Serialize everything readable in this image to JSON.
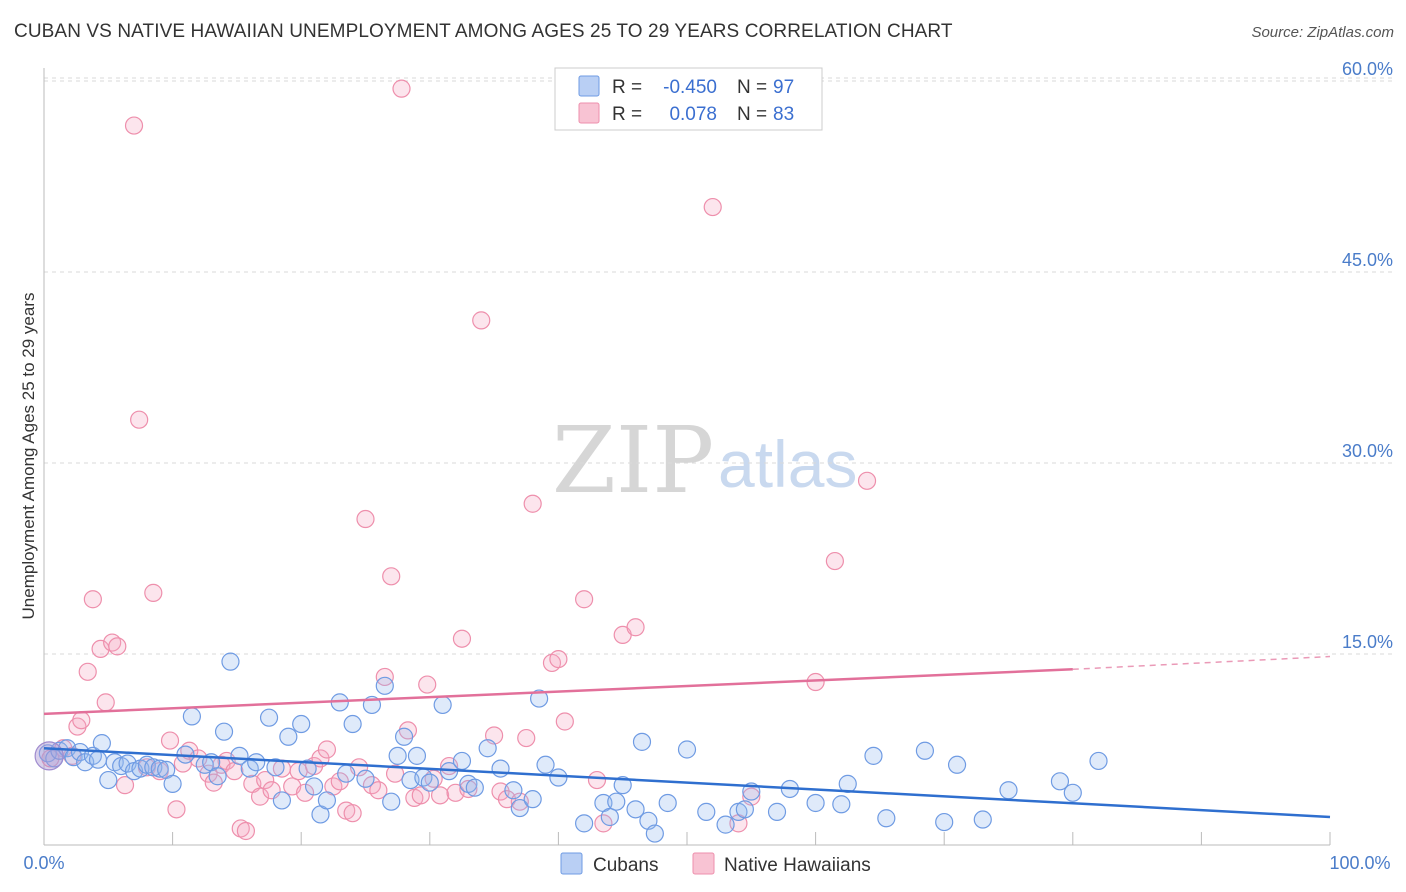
{
  "title": "CUBAN VS NATIVE HAWAIIAN UNEMPLOYMENT AMONG AGES 25 TO 29 YEARS CORRELATION CHART",
  "source": "Source: ZipAtlas.com",
  "watermark": {
    "zip": "ZIP",
    "atlas": "atlas"
  },
  "legend": {
    "r_label": "R =",
    "n_label": "N =",
    "rows": [
      {
        "r": "-0.450",
        "n": "97"
      },
      {
        "r": "0.078",
        "n": "83"
      }
    ]
  },
  "bottom_legend": [
    "Cubans",
    "Native Hawaiians"
  ],
  "chart_data": {
    "type": "scatter",
    "title": "CUBAN VS NATIVE HAWAIIAN UNEMPLOYMENT AMONG AGES 25 TO 29 YEARS CORRELATION CHART",
    "xlabel": "",
    "ylabel": "Unemployment Among Ages 25 to 29 years",
    "xlim": [
      0,
      100
    ],
    "ylim": [
      0,
      62
    ],
    "x_tick_labels": [
      "0.0%",
      "100.0%"
    ],
    "y_ticks": [
      15,
      30,
      45,
      60
    ],
    "y_tick_labels": [
      "15.0%",
      "30.0%",
      "45.0%",
      "60.0%"
    ],
    "grid": true,
    "legend_position": "top-center",
    "colors": {
      "cubans": "#6f9be3",
      "hawaiians": "#ee8fac",
      "cuban_line": "#2f6fcf",
      "hawaiian_line": "#e2709a"
    },
    "series": [
      {
        "name": "Cubans",
        "r": -0.45,
        "n": 97,
        "trend": {
          "x0": 0,
          "y0": 7.6,
          "x1": 100,
          "y1": 2.2
        },
        "points": [
          [
            0.3,
            7.2
          ],
          [
            0.8,
            6.8
          ],
          [
            1.2,
            7.4
          ],
          [
            1.8,
            7.6
          ],
          [
            2.3,
            6.9
          ],
          [
            2.8,
            7.3
          ],
          [
            3.2,
            6.5
          ],
          [
            3.8,
            7.0
          ],
          [
            4.2,
            6.7
          ],
          [
            4.5,
            8.0
          ],
          [
            5.0,
            5.1
          ],
          [
            5.5,
            6.5
          ],
          [
            6.0,
            6.2
          ],
          [
            6.5,
            6.4
          ],
          [
            7.0,
            5.8
          ],
          [
            7.5,
            6.0
          ],
          [
            8.0,
            6.3
          ],
          [
            8.5,
            6.1
          ],
          [
            9.0,
            6.0
          ],
          [
            9.5,
            5.9
          ],
          [
            10.0,
            4.8
          ],
          [
            11.0,
            7.1
          ],
          [
            11.5,
            10.1
          ],
          [
            12.5,
            6.3
          ],
          [
            13.0,
            6.5
          ],
          [
            13.5,
            5.4
          ],
          [
            14.0,
            8.9
          ],
          [
            14.5,
            14.4
          ],
          [
            15.2,
            7.0
          ],
          [
            16.0,
            6.0
          ],
          [
            16.5,
            6.5
          ],
          [
            17.5,
            10.0
          ],
          [
            18.0,
            6.1
          ],
          [
            18.5,
            3.5
          ],
          [
            19.0,
            8.5
          ],
          [
            20.0,
            9.5
          ],
          [
            20.5,
            6.0
          ],
          [
            21.0,
            4.6
          ],
          [
            21.5,
            2.4
          ],
          [
            22.0,
            3.5
          ],
          [
            23.0,
            11.2
          ],
          [
            23.5,
            5.6
          ],
          [
            24.0,
            9.5
          ],
          [
            25.0,
            5.2
          ],
          [
            25.5,
            11.0
          ],
          [
            26.5,
            12.5
          ],
          [
            27.0,
            3.4
          ],
          [
            27.5,
            7.0
          ],
          [
            28.0,
            8.5
          ],
          [
            28.5,
            5.1
          ],
          [
            29.0,
            7.0
          ],
          [
            29.5,
            5.3
          ],
          [
            30.0,
            4.9
          ],
          [
            31.0,
            11.0
          ],
          [
            31.5,
            5.8
          ],
          [
            32.5,
            6.6
          ],
          [
            33.0,
            4.8
          ],
          [
            33.5,
            4.5
          ],
          [
            34.5,
            7.6
          ],
          [
            35.5,
            6.0
          ],
          [
            36.5,
            4.3
          ],
          [
            37.0,
            2.9
          ],
          [
            38.0,
            3.6
          ],
          [
            38.5,
            11.5
          ],
          [
            39.0,
            6.3
          ],
          [
            40.0,
            5.3
          ],
          [
            42.0,
            1.7
          ],
          [
            43.5,
            3.3
          ],
          [
            44.0,
            2.2
          ],
          [
            44.5,
            3.4
          ],
          [
            45.0,
            4.7
          ],
          [
            46.0,
            2.8
          ],
          [
            46.5,
            8.1
          ],
          [
            47.0,
            1.9
          ],
          [
            47.5,
            0.9
          ],
          [
            48.5,
            3.3
          ],
          [
            50.0,
            7.5
          ],
          [
            51.5,
            2.6
          ],
          [
            53.0,
            1.6
          ],
          [
            54.0,
            2.6
          ],
          [
            54.5,
            2.8
          ],
          [
            55.0,
            4.2
          ],
          [
            57.0,
            2.6
          ],
          [
            58.0,
            4.4
          ],
          [
            60.0,
            3.3
          ],
          [
            62.0,
            3.2
          ],
          [
            62.5,
            4.8
          ],
          [
            64.5,
            7.0
          ],
          [
            65.5,
            2.1
          ],
          [
            68.5,
            7.4
          ],
          [
            70.0,
            1.8
          ],
          [
            71.0,
            6.3
          ],
          [
            73.0,
            2.0
          ],
          [
            75.0,
            4.3
          ],
          [
            79.0,
            5.0
          ],
          [
            80.0,
            4.1
          ],
          [
            82.0,
            6.6
          ]
        ]
      },
      {
        "name": "Native Hawaiians",
        "r": 0.078,
        "n": 83,
        "trend": {
          "x0": 0,
          "y0": 10.3,
          "x1": 80,
          "y1": 13.8,
          "dashed_to": {
            "x": 100,
            "y": 14.8
          }
        },
        "points": [
          [
            0.5,
            6.8
          ],
          [
            1.5,
            7.6
          ],
          [
            2.2,
            7.0
          ],
          [
            2.6,
            9.3
          ],
          [
            2.9,
            9.8
          ],
          [
            3.4,
            13.6
          ],
          [
            3.8,
            19.3
          ],
          [
            4.4,
            15.4
          ],
          [
            4.8,
            11.2
          ],
          [
            5.3,
            15.9
          ],
          [
            5.7,
            15.6
          ],
          [
            6.3,
            4.7
          ],
          [
            7.0,
            56.5
          ],
          [
            7.4,
            33.4
          ],
          [
            8.0,
            6.1
          ],
          [
            8.5,
            19.8
          ],
          [
            9.0,
            5.8
          ],
          [
            9.8,
            8.2
          ],
          [
            10.3,
            2.8
          ],
          [
            10.8,
            6.4
          ],
          [
            11.3,
            7.4
          ],
          [
            12.0,
            6.8
          ],
          [
            12.8,
            5.6
          ],
          [
            13.2,
            4.9
          ],
          [
            13.8,
            6.3
          ],
          [
            14.2,
            6.6
          ],
          [
            14.8,
            5.8
          ],
          [
            15.3,
            1.3
          ],
          [
            15.7,
            1.1
          ],
          [
            16.2,
            4.8
          ],
          [
            16.8,
            3.8
          ],
          [
            17.2,
            5.1
          ],
          [
            17.7,
            4.3
          ],
          [
            18.5,
            6.0
          ],
          [
            19.3,
            4.6
          ],
          [
            19.8,
            5.8
          ],
          [
            20.3,
            4.1
          ],
          [
            21.0,
            6.2
          ],
          [
            21.5,
            6.8
          ],
          [
            22.0,
            7.5
          ],
          [
            22.5,
            4.6
          ],
          [
            23.0,
            5.0
          ],
          [
            23.5,
            2.7
          ],
          [
            24.0,
            2.5
          ],
          [
            24.5,
            6.1
          ],
          [
            25.0,
            25.6
          ],
          [
            25.5,
            4.7
          ],
          [
            26.0,
            4.3
          ],
          [
            26.5,
            13.2
          ],
          [
            27.0,
            21.1
          ],
          [
            27.3,
            5.6
          ],
          [
            27.8,
            59.4
          ],
          [
            28.3,
            9.0
          ],
          [
            28.8,
            3.7
          ],
          [
            29.3,
            3.9
          ],
          [
            29.8,
            12.6
          ],
          [
            30.3,
            5.2
          ],
          [
            30.8,
            3.9
          ],
          [
            31.5,
            6.2
          ],
          [
            32.0,
            4.1
          ],
          [
            32.5,
            16.2
          ],
          [
            33.0,
            4.4
          ],
          [
            34.0,
            41.2
          ],
          [
            35.0,
            8.6
          ],
          [
            35.5,
            4.2
          ],
          [
            36.0,
            3.6
          ],
          [
            37.0,
            3.4
          ],
          [
            37.5,
            8.4
          ],
          [
            38.0,
            26.8
          ],
          [
            39.5,
            14.3
          ],
          [
            40.0,
            14.6
          ],
          [
            40.5,
            9.7
          ],
          [
            42.0,
            19.3
          ],
          [
            43.0,
            5.1
          ],
          [
            43.5,
            1.7
          ],
          [
            45.0,
            16.5
          ],
          [
            46.0,
            17.1
          ],
          [
            52.0,
            50.1
          ],
          [
            54.0,
            1.7
          ],
          [
            55.0,
            3.8
          ],
          [
            60.0,
            12.8
          ],
          [
            61.5,
            22.3
          ],
          [
            64.0,
            28.6
          ]
        ]
      }
    ]
  }
}
